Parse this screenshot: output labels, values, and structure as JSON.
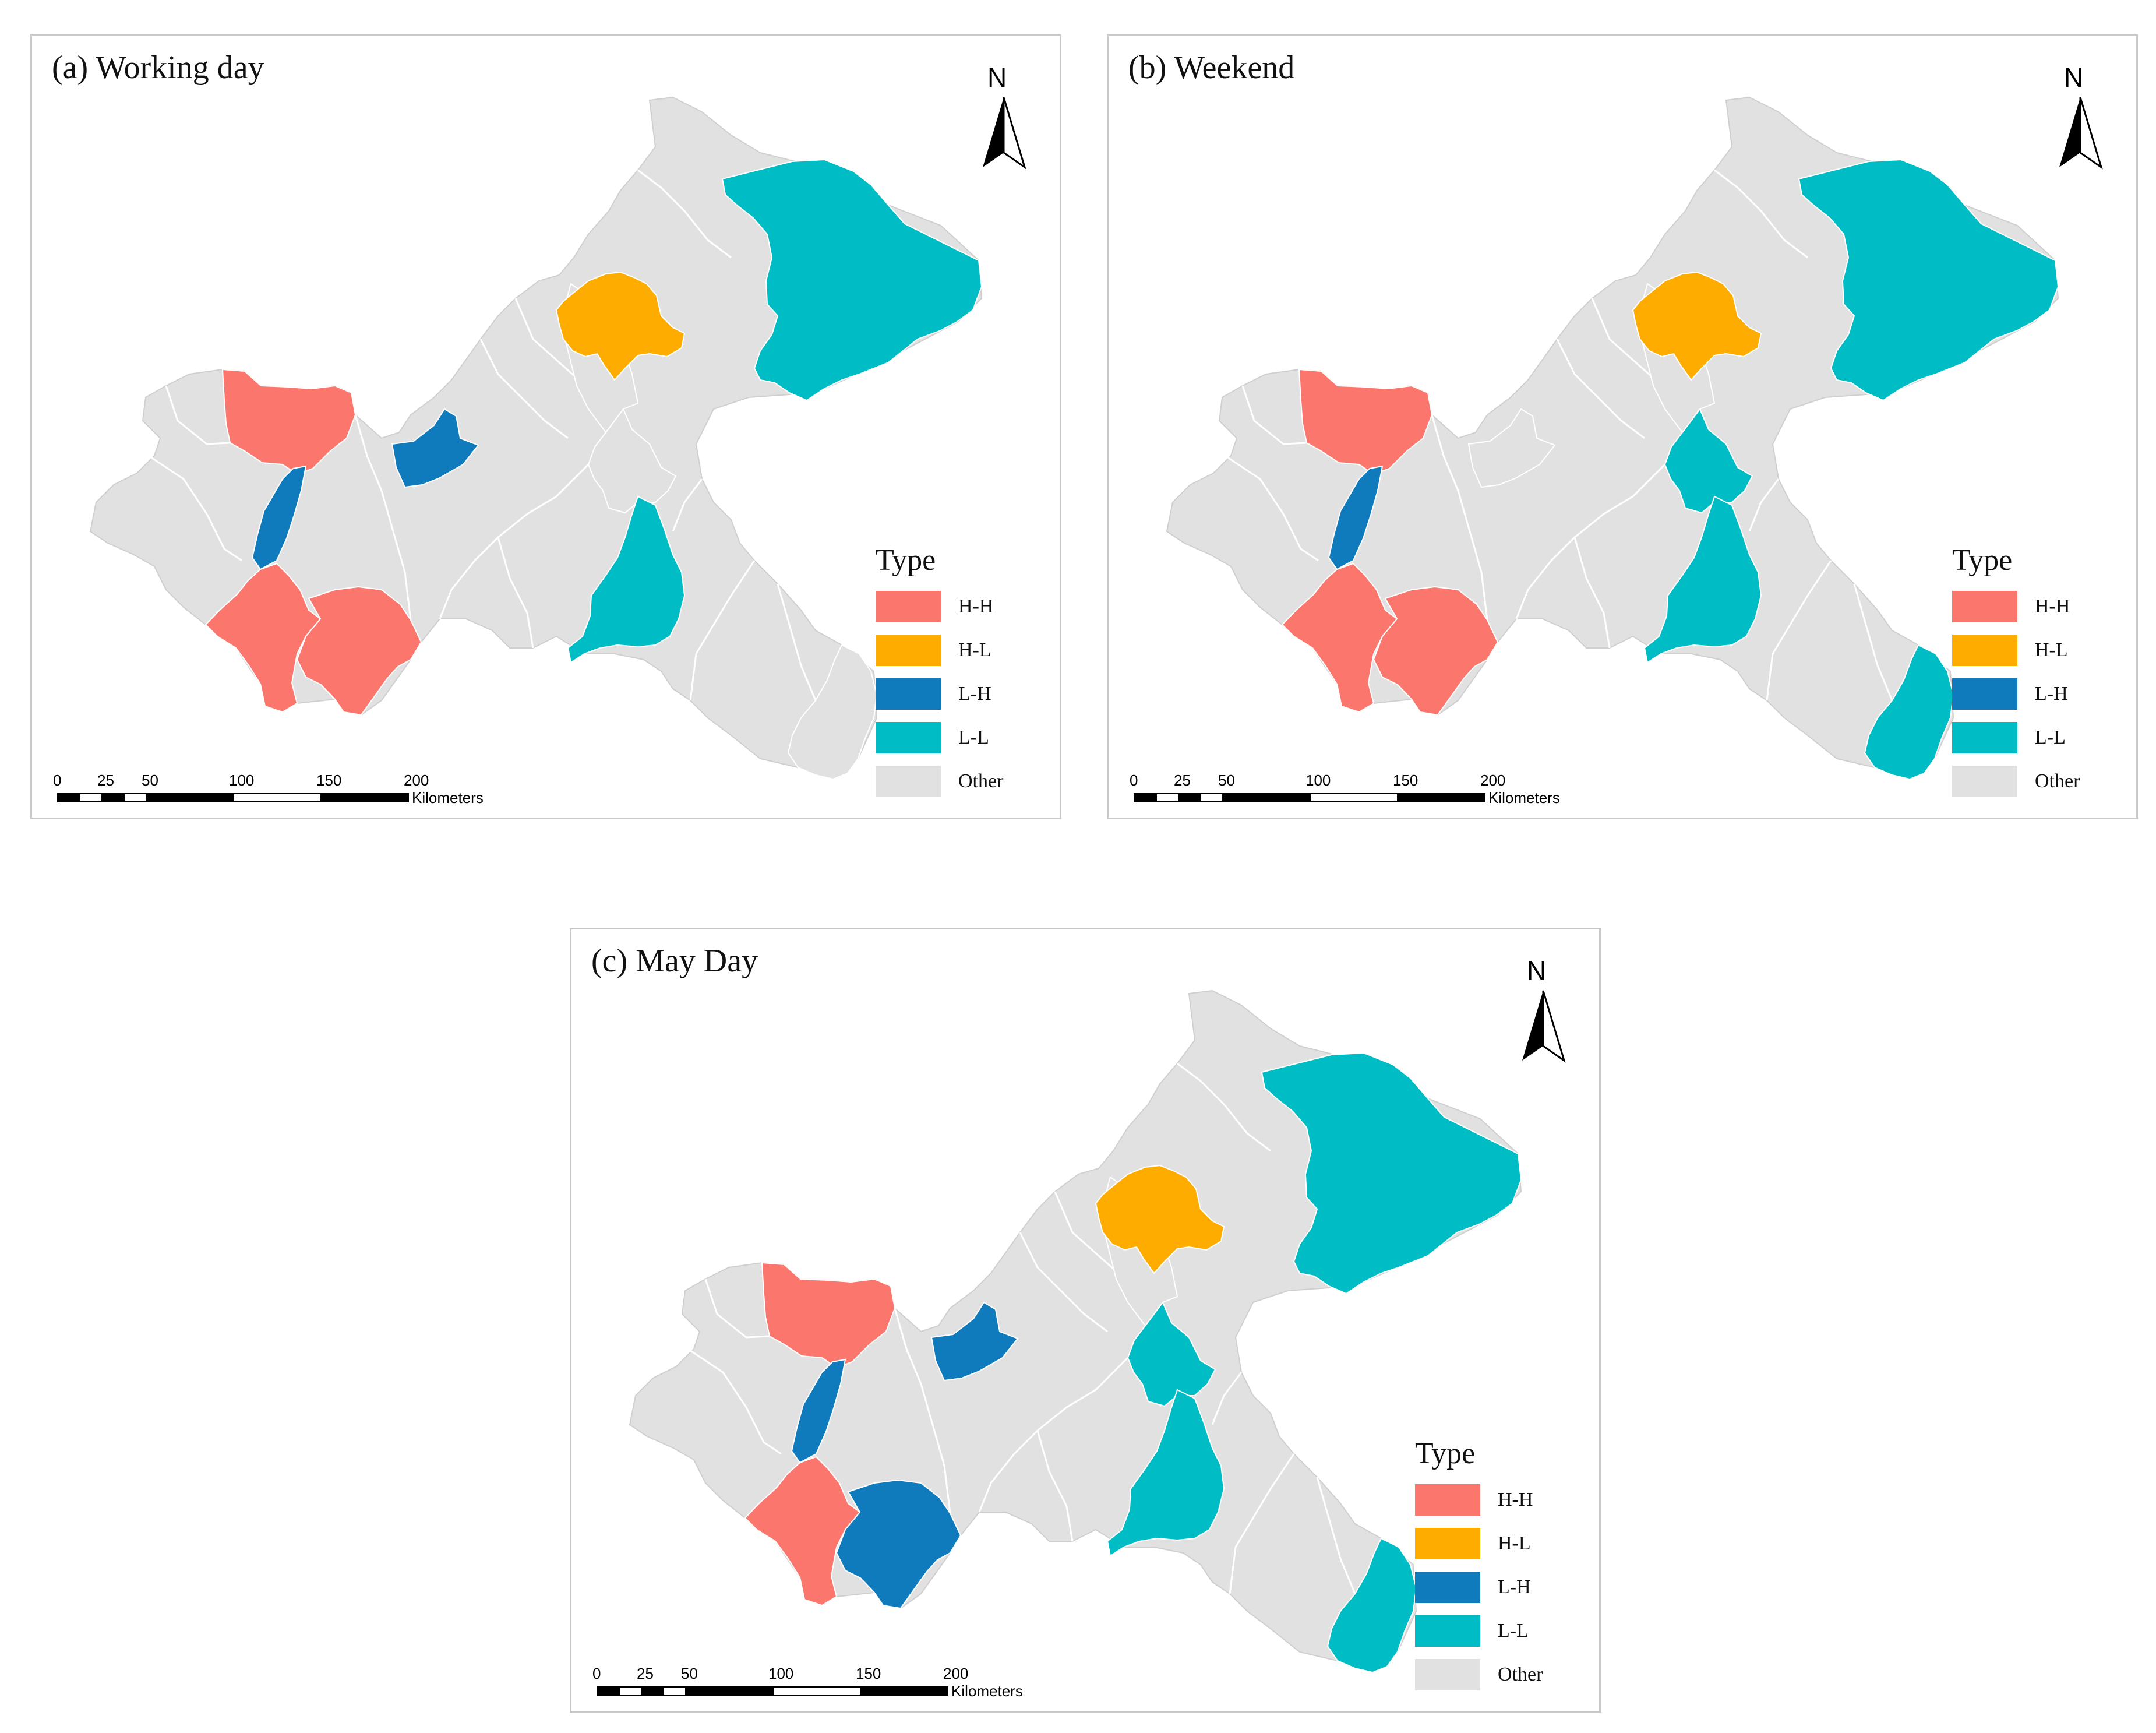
{
  "colors": {
    "H-H": "#fb776e",
    "H-L": "#ffac00",
    "L-H": "#0f7abc",
    "L-L": "#00bcc5",
    "Other": "#e1e1e1",
    "border": "#ffffff"
  },
  "legend": {
    "title": "Type",
    "items": [
      {
        "key": "H-H",
        "label": "H-H"
      },
      {
        "key": "H-L",
        "label": "H-L"
      },
      {
        "key": "L-H",
        "label": "L-H"
      },
      {
        "key": "L-L",
        "label": "L-L"
      },
      {
        "key": "Other",
        "label": "Other"
      }
    ]
  },
  "north_arrow": {
    "label": "N"
  },
  "scale_bar": {
    "ticks": [
      "0",
      "25",
      "50",
      "100",
      "150",
      "200"
    ],
    "unit": "Kilometers"
  },
  "panels": [
    {
      "id": "a",
      "title": "(a) Working day",
      "regions": {
        "northwest_core": "H-H",
        "central_lake": "L-H",
        "southwest_core": "H-H",
        "southwest_east": "H-H",
        "central_north_link": "L-H",
        "central_east_a": "Other",
        "central_east_b": "Other",
        "northeast_middle": "H-L",
        "northeast_far": "L-L",
        "southeast_upper": "L-L",
        "southeast_lower": "Other"
      }
    },
    {
      "id": "b",
      "title": "(b) Weekend",
      "regions": {
        "northwest_core": "H-H",
        "central_lake": "L-H",
        "southwest_core": "H-H",
        "southwest_east": "H-H",
        "central_north_link": "Other",
        "central_east_a": "L-L",
        "central_east_b": "Other",
        "northeast_middle": "H-L",
        "northeast_far": "L-L",
        "southeast_upper": "L-L",
        "southeast_lower": "L-L"
      }
    },
    {
      "id": "c",
      "title": "(c) May Day",
      "regions": {
        "northwest_core": "H-H",
        "central_lake": "L-H",
        "southwest_core": "H-H",
        "southwest_east": "L-H",
        "central_north_link": "L-H",
        "central_east_a": "L-L",
        "central_east_b": "Other",
        "northeast_middle": "H-L",
        "northeast_far": "L-L",
        "southeast_upper": "L-L",
        "southeast_lower": "L-L"
      }
    }
  ]
}
